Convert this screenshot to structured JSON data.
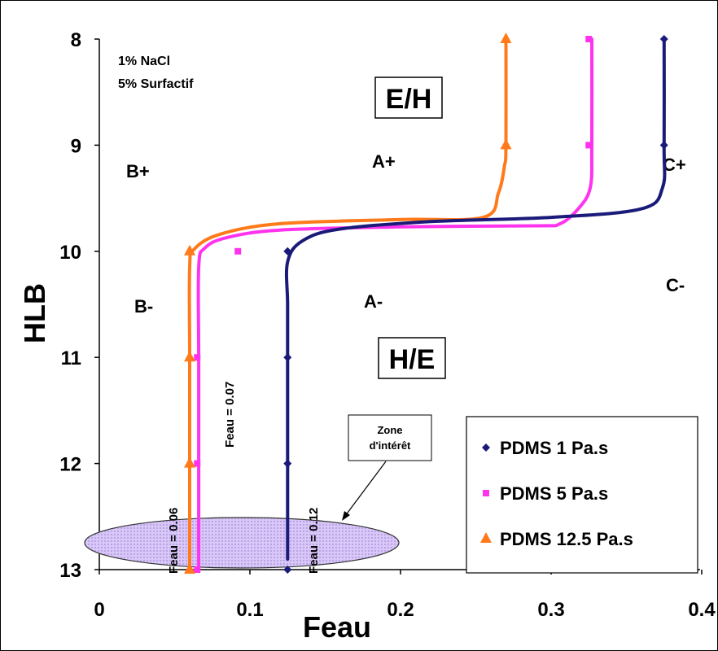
{
  "chart_data": {
    "type": "line",
    "xlabel": "Feau",
    "ylabel": "HLB",
    "xlim": [
      0,
      0.4
    ],
    "ylim": [
      8,
      13
    ],
    "y_inverted": true,
    "x_ticks": [
      "0",
      "0.1",
      "0.2",
      "0.3",
      "0.4"
    ],
    "y_ticks": [
      "8",
      "9",
      "10",
      "11",
      "12",
      "13"
    ],
    "grid": false,
    "legend_position": "bottom-right",
    "series": [
      {
        "name": "PDMS 1 Pa.s",
        "color": "#1a1a7a",
        "marker": "diamond",
        "points": [
          [
            0.375,
            8
          ],
          [
            0.375,
            9
          ],
          [
            0.125,
            10
          ],
          [
            0.125,
            11
          ],
          [
            0.125,
            12
          ],
          [
            0.125,
            13
          ]
        ],
        "curve": [
          [
            0.375,
            8
          ],
          [
            0.375,
            9.0
          ],
          [
            0.374,
            9.4
          ],
          [
            0.36,
            9.6
          ],
          [
            0.3,
            9.68
          ],
          [
            0.22,
            9.72
          ],
          [
            0.16,
            9.79
          ],
          [
            0.135,
            9.9
          ],
          [
            0.125,
            10.1
          ],
          [
            0.125,
            10.5
          ],
          [
            0.125,
            11
          ],
          [
            0.125,
            12
          ],
          [
            0.125,
            12.9
          ]
        ]
      },
      {
        "name": "PDMS 5 Pa.s",
        "color": "#ff33ee",
        "marker": "square",
        "points": [
          [
            0.325,
            8
          ],
          [
            0.325,
            9
          ],
          [
            0.092,
            10
          ],
          [
            0.065,
            11
          ],
          [
            0.065,
            12
          ],
          [
            0.065,
            13
          ]
        ],
        "curve": [
          [
            0.327,
            8
          ],
          [
            0.327,
            9.0
          ],
          [
            0.326,
            9.4
          ],
          [
            0.318,
            9.6
          ],
          [
            0.306,
            9.74
          ],
          [
            0.29,
            9.76
          ],
          [
            0.2,
            9.77
          ],
          [
            0.12,
            9.8
          ],
          [
            0.085,
            9.87
          ],
          [
            0.07,
            9.97
          ],
          [
            0.066,
            10.15
          ],
          [
            0.066,
            11
          ],
          [
            0.066,
            12
          ],
          [
            0.066,
            13
          ]
        ]
      },
      {
        "name": "PDMS 12.5 Pa.s",
        "color": "#ff7a1a",
        "marker": "triangle",
        "points": [
          [
            0.27,
            8
          ],
          [
            0.27,
            9
          ],
          [
            0.06,
            10
          ],
          [
            0.06,
            11
          ],
          [
            0.06,
            12
          ],
          [
            0.06,
            13
          ]
        ],
        "curve": [
          [
            0.27,
            8
          ],
          [
            0.27,
            9.0
          ],
          [
            0.269,
            9.2
          ],
          [
            0.265,
            9.45
          ],
          [
            0.255,
            9.68
          ],
          [
            0.2,
            9.7
          ],
          [
            0.12,
            9.74
          ],
          [
            0.08,
            9.84
          ],
          [
            0.063,
            9.98
          ],
          [
            0.06,
            10.15
          ],
          [
            0.06,
            11
          ],
          [
            0.06,
            12
          ],
          [
            0.06,
            13
          ]
        ]
      }
    ],
    "annotations": {
      "conditions_line1": "1% NaCl",
      "conditions_line2": "5% Surfactif",
      "eh_box": "E/H",
      "he_box": "H/E",
      "region_b_plus": "B+",
      "region_b_minus": "B-",
      "region_a_plus": "A+",
      "region_a_minus": "A-",
      "region_c_plus": "C+",
      "region_c_minus": "C-",
      "feau_006": "Feau = 0.06",
      "feau_007": "Feau = 0.07",
      "feau_012": "Feau = 0.12",
      "zone_line1": "Zone",
      "zone_line2": "d'intérêt"
    },
    "legend_label_1": "PDMS 1 Pa.s",
    "legend_label_2": "PDMS 5 Pa.s",
    "legend_label_3": "PDMS 12.5 Pa.s"
  }
}
